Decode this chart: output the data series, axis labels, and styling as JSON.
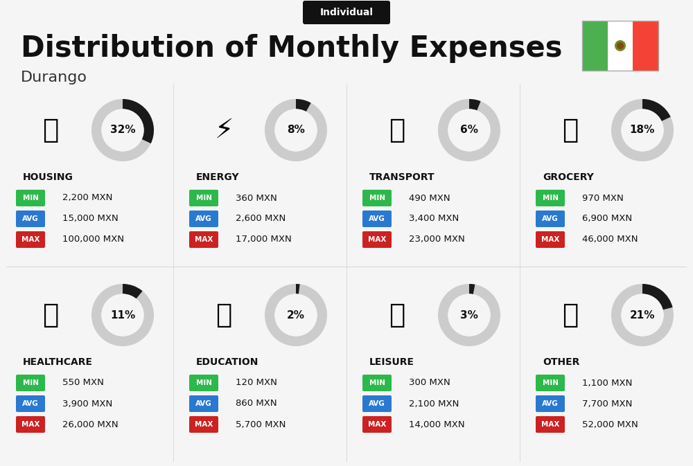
{
  "title": "Distribution of Monthly Expenses",
  "subtitle": "Individual",
  "city": "Durango",
  "background_color": "#f5f5f5",
  "categories": [
    {
      "name": "HOUSING",
      "percent": 32,
      "min": "2,200 MXN",
      "avg": "15,000 MXN",
      "max": "100,000 MXN",
      "row": 0,
      "col": 0
    },
    {
      "name": "ENERGY",
      "percent": 8,
      "min": "360 MXN",
      "avg": "2,600 MXN",
      "max": "17,000 MXN",
      "row": 0,
      "col": 1
    },
    {
      "name": "TRANSPORT",
      "percent": 6,
      "min": "490 MXN",
      "avg": "3,400 MXN",
      "max": "23,000 MXN",
      "row": 0,
      "col": 2
    },
    {
      "name": "GROCERY",
      "percent": 18,
      "min": "970 MXN",
      "avg": "6,900 MXN",
      "max": "46,000 MXN",
      "row": 0,
      "col": 3
    },
    {
      "name": "HEALTHCARE",
      "percent": 11,
      "min": "550 MXN",
      "avg": "3,900 MXN",
      "max": "26,000 MXN",
      "row": 1,
      "col": 0
    },
    {
      "name": "EDUCATION",
      "percent": 2,
      "min": "120 MXN",
      "avg": "860 MXN",
      "max": "5,700 MXN",
      "row": 1,
      "col": 1
    },
    {
      "name": "LEISURE",
      "percent": 3,
      "min": "300 MXN",
      "avg": "2,100 MXN",
      "max": "14,000 MXN",
      "row": 1,
      "col": 2
    },
    {
      "name": "OTHER",
      "percent": 21,
      "min": "1,100 MXN",
      "avg": "7,700 MXN",
      "max": "52,000 MXN",
      "row": 1,
      "col": 3
    }
  ],
  "min_color": "#2db84b",
  "avg_color": "#2979d0",
  "max_color": "#cc2222",
  "label_color": "#ffffff",
  "donut_filled_color": "#1a1a1a",
  "donut_empty_color": "#cccccc",
  "title_color": "#111111",
  "city_color": "#333333",
  "category_name_color": "#111111",
  "flag_green": "#4caf50",
  "flag_white": "#ffffff",
  "flag_red": "#f44336",
  "divider_color": "#dddddd",
  "subtitle_bg": "#111111",
  "subtitle_text": "#ffffff"
}
